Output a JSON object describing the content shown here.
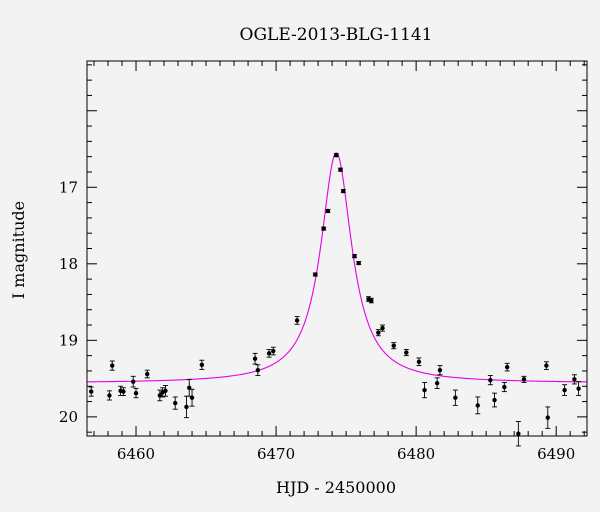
{
  "chart_data": {
    "type": "scatter",
    "title": "OGLE-2013-BLG-1141",
    "xlabel": "HJD - 2450000",
    "ylabel": "I magnitude",
    "xlim": [
      6456.5,
      6492.2
    ],
    "ylim": [
      20.25,
      15.35
    ],
    "y_inverted": true,
    "x_ticks": [
      6460,
      6470,
      6480,
      6490
    ],
    "y_ticks": [
      17,
      18,
      19,
      20
    ],
    "grid": false,
    "colors": {
      "background": "#f3f3f3",
      "points": "#000000",
      "model": "#e600e6",
      "axes": "#000000"
    },
    "model_curve": {
      "t0": 6474.3,
      "baseline_mag": 19.56,
      "peak_mag": 16.55,
      "tau": 1.35
    },
    "series": [
      {
        "type": "points_with_errorbars",
        "x": [
          6456.8,
          6458.1,
          6458.3,
          6458.9,
          6459.1,
          6459.8,
          6460.0,
          6460.8,
          6461.7,
          6461.9,
          6462.1,
          6462.8,
          6463.6,
          6463.8,
          6464.0,
          6464.7,
          6468.5,
          6468.7,
          6469.5,
          6469.8,
          6471.5,
          6472.8,
          6473.4,
          6473.7,
          6474.3,
          6474.6,
          6474.8,
          6475.6,
          6475.9,
          6476.6,
          6476.8,
          6477.3,
          6477.6,
          6478.4,
          6479.3,
          6480.2,
          6480.6,
          6481.5,
          6481.7,
          6482.8,
          6484.4,
          6485.3,
          6485.6,
          6486.3,
          6486.5,
          6487.3,
          6487.7,
          6489.3,
          6489.4,
          6490.6,
          6491.3,
          6491.6
        ],
        "y": [
          19.67,
          19.72,
          19.33,
          19.66,
          19.67,
          19.54,
          19.69,
          19.44,
          19.72,
          19.68,
          19.66,
          19.82,
          19.87,
          19.62,
          19.75,
          19.32,
          19.24,
          19.39,
          19.17,
          19.14,
          18.74,
          18.14,
          17.54,
          17.31,
          16.58,
          16.77,
          17.05,
          17.9,
          17.99,
          18.46,
          18.48,
          18.9,
          18.84,
          19.07,
          19.16,
          19.28,
          19.65,
          19.56,
          19.39,
          19.75,
          19.85,
          19.52,
          19.78,
          19.61,
          19.35,
          20.22,
          19.51,
          19.33,
          20.01,
          19.65,
          19.51,
          19.63
        ],
        "yerr": [
          0.06,
          0.06,
          0.06,
          0.06,
          0.05,
          0.07,
          0.06,
          0.05,
          0.07,
          0.06,
          0.07,
          0.08,
          0.14,
          0.11,
          0.11,
          0.06,
          0.07,
          0.07,
          0.05,
          0.05,
          0.05,
          0.02,
          0.02,
          0.02,
          0.02,
          0.02,
          0.02,
          0.02,
          0.02,
          0.03,
          0.03,
          0.04,
          0.04,
          0.04,
          0.04,
          0.05,
          0.1,
          0.07,
          0.06,
          0.1,
          0.11,
          0.06,
          0.09,
          0.06,
          0.05,
          0.16,
          0.04,
          0.05,
          0.14,
          0.07,
          0.06,
          0.09
        ]
      }
    ]
  }
}
